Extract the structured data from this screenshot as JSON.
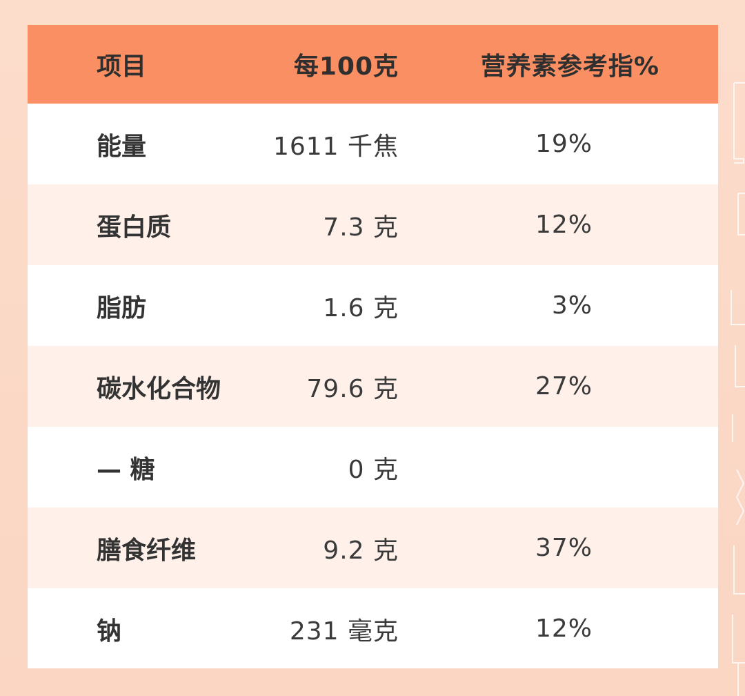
{
  "table": {
    "headers": {
      "item": "项目",
      "per100g": "每100克",
      "nrv": "营养素参考指%"
    },
    "rows": [
      {
        "item": "能量",
        "per100g": "1611 千焦",
        "nrv": "19%"
      },
      {
        "item": "蛋白质",
        "per100g": "7.3 克",
        "nrv": "12%"
      },
      {
        "item": "脂肪",
        "per100g": "1.6 克",
        "nrv": "3%"
      },
      {
        "item": "碳水化合物",
        "per100g": "79.6 克",
        "nrv": "27%"
      },
      {
        "item": "— 糖",
        "per100g": "0 克",
        "nrv": ""
      },
      {
        "item": "膳食纤维",
        "per100g": "9.2 克",
        "nrv": "37%"
      },
      {
        "item": "钠",
        "per100g": "231 毫克",
        "nrv": "12%"
      }
    ]
  },
  "colors": {
    "background": "#fbd9c8",
    "header": "#f98f63",
    "row_alt": "#fff1ea",
    "row": "#ffffff",
    "text": "#333333"
  }
}
